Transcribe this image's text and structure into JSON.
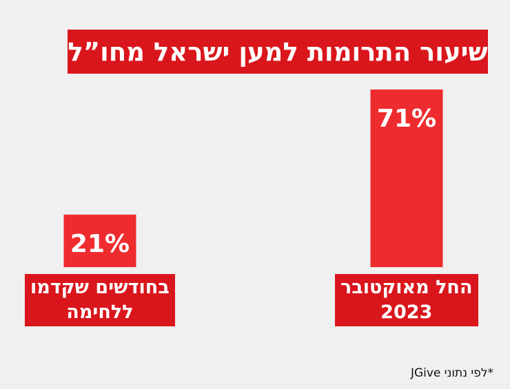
{
  "colors": {
    "background": "#f0f0f0",
    "bar": "#ee2c2f",
    "label_bg": "#d9161c",
    "text_on_red": "#ffffff"
  },
  "chart_data": {
    "type": "bar",
    "title": "שיעור התרומות למען ישראל מחו”ל",
    "xlabel": "",
    "ylabel": "",
    "ylim": [
      0,
      71
    ],
    "grid": false,
    "categories": [
      [
        "בחודשים שקדמו",
        "ללחימה"
      ],
      [
        "החל מאוקטובר",
        "2023"
      ]
    ],
    "values": [
      21,
      71
    ],
    "value_labels": [
      "21%",
      "71%"
    ]
  },
  "source_note": "*לפי נתוני JGive"
}
